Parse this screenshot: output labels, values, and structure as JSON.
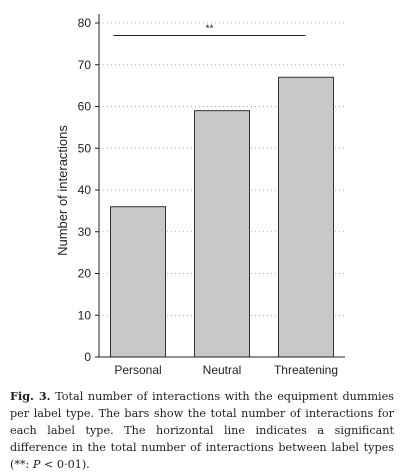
{
  "chart_data": {
    "type": "bar",
    "categories": [
      "Personal",
      "Neutral",
      "Threatening"
    ],
    "values": [
      36,
      59,
      67
    ],
    "title": "",
    "xlabel": "",
    "ylabel": "Number of interactions",
    "ylim": [
      0,
      80
    ],
    "yticks": [
      "0",
      "10",
      "20",
      "30",
      "40",
      "50",
      "60",
      "70",
      "80"
    ],
    "grid": "dotted horizontal",
    "bar_color": "#c8c8c8",
    "annotation": {
      "label": "**",
      "span": [
        "Personal",
        "Threatening"
      ],
      "y": 77
    }
  },
  "caption": {
    "label": "Fig. 3.",
    "text_before": "Total number of interactions with the equipment dummies per label type. The bars show the total number of interactions for each label type. The horizontal line indicates a significant difference in the total number of interactions between label types (**: ",
    "p_symbol": "P",
    "text_after": " < 0·01)."
  }
}
